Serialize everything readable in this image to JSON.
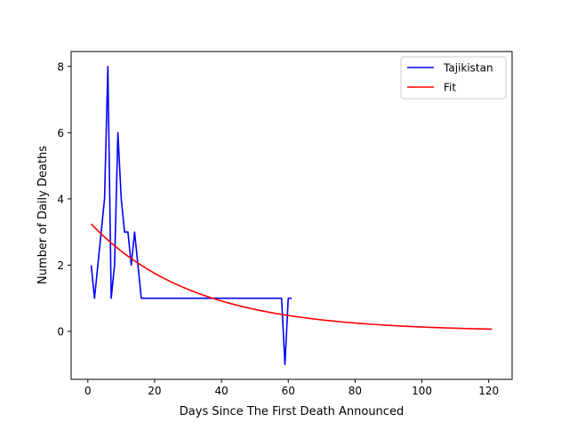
{
  "chart_data": {
    "type": "line",
    "xlabel": "Days Since The First Death Announced",
    "ylabel": "Number of Daily Deaths",
    "xlim": [
      -5,
      127
    ],
    "ylim": [
      -1.45,
      8.45
    ],
    "x_ticks": [
      0,
      20,
      40,
      60,
      80,
      100,
      120
    ],
    "y_ticks": [
      0,
      2,
      4,
      6,
      8
    ],
    "legend_position": "top-right",
    "grid": false,
    "series": [
      {
        "name": "Tajikistan",
        "color": "#0000ff",
        "x": [
          1,
          2,
          3,
          4,
          5,
          6,
          7,
          8,
          9,
          10,
          11,
          12,
          13,
          14,
          15,
          16,
          17,
          18,
          19,
          20,
          21,
          22,
          23,
          24,
          25,
          26,
          27,
          28,
          29,
          30,
          31,
          32,
          33,
          34,
          35,
          36,
          37,
          38,
          39,
          40,
          41,
          42,
          43,
          44,
          45,
          46,
          47,
          48,
          49,
          50,
          51,
          52,
          53,
          54,
          55,
          56,
          57,
          58,
          59,
          60,
          61
        ],
        "y": [
          2,
          1,
          2,
          3,
          4,
          8,
          1,
          2,
          6,
          4,
          3,
          3,
          2,
          3,
          2,
          1,
          1,
          1,
          1,
          1,
          1,
          1,
          1,
          1,
          1,
          1,
          1,
          1,
          1,
          1,
          1,
          1,
          1,
          1,
          1,
          1,
          1,
          1,
          1,
          1,
          1,
          1,
          1,
          1,
          1,
          1,
          1,
          1,
          1,
          1,
          1,
          1,
          1,
          1,
          1,
          1,
          1,
          1,
          -1,
          1,
          1
        ]
      },
      {
        "name": "Fit",
        "color": "#ff0000",
        "type": "exponential",
        "a": 3.35,
        "b": 0.0324,
        "x_range": [
          1,
          121
        ]
      }
    ]
  }
}
